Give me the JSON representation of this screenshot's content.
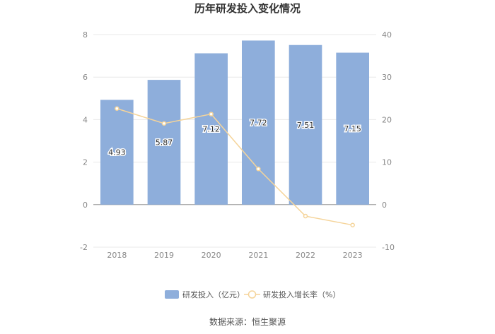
{
  "chart_data": {
    "type": "bar",
    "title": "历年研发投入变化情况",
    "categories": [
      "2018",
      "2019",
      "2020",
      "2021",
      "2022",
      "2023"
    ],
    "series": [
      {
        "name": "研发投入（亿元）",
        "type": "bar",
        "axis": "left",
        "color": "#8eaedb",
        "values": [
          4.93,
          5.87,
          7.12,
          7.72,
          7.51,
          7.15
        ],
        "labels": [
          "4.93",
          "5.87",
          "7.12",
          "7.72",
          "7.51",
          "7.15"
        ]
      },
      {
        "name": "研发投入增长率（%）",
        "type": "line",
        "axis": "right",
        "color": "#f5d49a",
        "values": [
          22.6,
          19.1,
          21.3,
          8.4,
          -2.7,
          -4.8
        ]
      }
    ],
    "y_left": {
      "min": -2,
      "max": 8,
      "ticks": [
        "-2",
        "0",
        "2",
        "4",
        "6",
        "8"
      ]
    },
    "y_right": {
      "min": -10,
      "max": 40,
      "ticks": [
        "-10",
        "0",
        "10",
        "20",
        "30",
        "40"
      ]
    },
    "grid": true,
    "legend_position": "bottom"
  },
  "source": "数据来源：恒生聚源"
}
